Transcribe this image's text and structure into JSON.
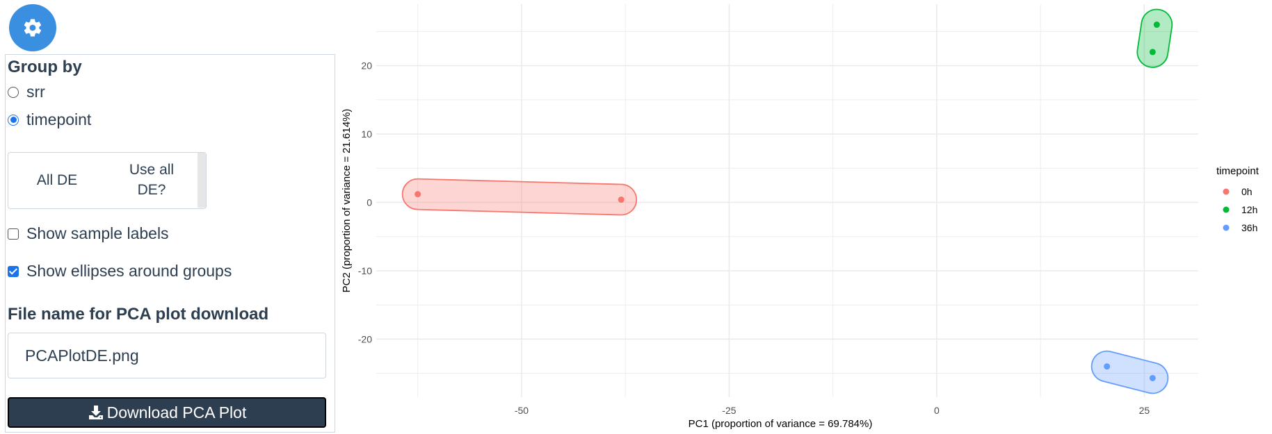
{
  "settings_button": {
    "icon": "gear-icon"
  },
  "panel": {
    "group_by_label": "Group by",
    "radio_options": [
      {
        "label": "srr",
        "selected": false
      },
      {
        "label": "timepoint",
        "selected": true
      }
    ],
    "de_toggle": {
      "option1": "All DE",
      "option2_line1": "Use all",
      "option2_line2": "DE?"
    },
    "show_sample_labels": {
      "label": "Show sample labels",
      "checked": false
    },
    "show_ellipses": {
      "label": "Show ellipses around groups",
      "checked": true
    },
    "file_name_label": "File name for PCA plot download",
    "file_name_value": "PCAPlotDE.png",
    "download_button": {
      "label": "Download PCA Plot",
      "icon": "download-icon"
    }
  },
  "chart_data": {
    "type": "scatter",
    "xlabel": "PC1 (proportion of variance = 69.784%)",
    "ylabel": "PC2 (proportion of variance = 21.614%)",
    "xlim": [
      -67.5,
      31.5
    ],
    "ylim": [
      -28.5,
      29
    ],
    "xticks": [
      -50,
      -25,
      0,
      25
    ],
    "yticks": [
      -20,
      -10,
      0,
      10,
      20
    ],
    "grid": true,
    "legend_title": "timepoint",
    "legend_position": "right",
    "series": [
      {
        "name": "0h",
        "color": "#f8766d",
        "points": [
          [
            -62.5,
            1.2
          ],
          [
            -38,
            0.4
          ]
        ]
      },
      {
        "name": "12h",
        "color": "#00ba38",
        "points": [
          [
            26.5,
            26.0
          ],
          [
            26.0,
            22.0
          ]
        ]
      },
      {
        "name": "36h",
        "color": "#619cff",
        "points": [
          [
            20.5,
            -24.0
          ],
          [
            26.0,
            -25.7
          ]
        ]
      }
    ]
  }
}
